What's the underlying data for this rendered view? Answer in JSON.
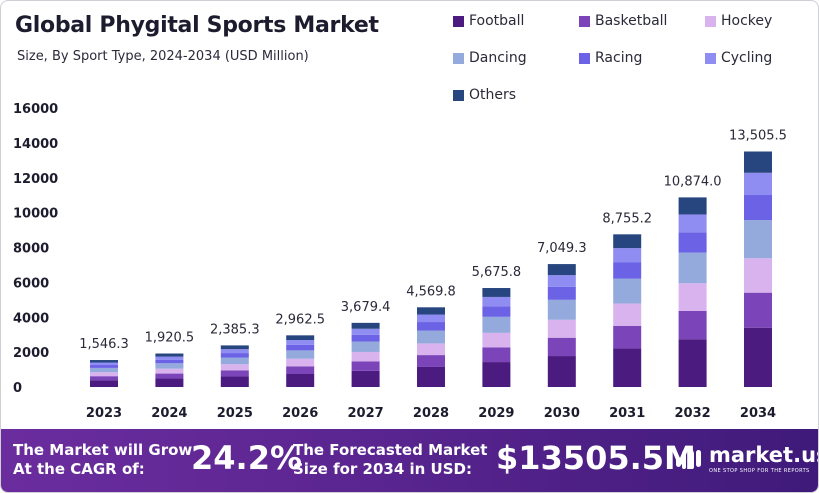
{
  "header": {
    "title": "Global Phygital Sports Market",
    "subtitle": "Size, By Sport Type, 2024-2034 (USD Million)"
  },
  "chart_data": {
    "type": "bar",
    "stacked": true,
    "categories": [
      "2023",
      "2024",
      "2025",
      "2026",
      "2027",
      "2028",
      "2029",
      "2030",
      "2031",
      "2032",
      "2034"
    ],
    "totals": [
      "1,546.3",
      "1,920.5",
      "2,385.3",
      "2,962.5",
      "3,679.4",
      "4,569.8",
      "5,675.8",
      "7,049.3",
      "8,755.2",
      "10,874.0",
      "13,505.5"
    ],
    "total_values": [
      1546.3,
      1920.5,
      2385.3,
      2962.5,
      3679.4,
      4569.8,
      5675.8,
      7049.3,
      8755.2,
      10874.0,
      13505.5
    ],
    "series": [
      {
        "name": "Football",
        "color": "#4b1b7f",
        "values": [
          390,
          485,
          600,
          745,
          925,
          1150,
          1430,
          1775,
          2205,
          2740,
          3400
        ]
      },
      {
        "name": "Basketball",
        "color": "#7b44b8",
        "values": [
          230,
          285,
          355,
          440,
          545,
          680,
          845,
          1050,
          1305,
          1620,
          2010
        ]
      },
      {
        "name": "Hockey",
        "color": "#d9b3ee",
        "values": [
          225,
          280,
          350,
          435,
          540,
          670,
          830,
          1030,
          1280,
          1590,
          1975
        ]
      },
      {
        "name": "Dancing",
        "color": "#94aadc",
        "values": [
          250,
          310,
          385,
          480,
          595,
          740,
          920,
          1145,
          1420,
          1765,
          2190
        ]
      },
      {
        "name": "Racing",
        "color": "#6c62e6",
        "values": [
          165,
          205,
          255,
          315,
          390,
          485,
          605,
          750,
          930,
          1155,
          1435
        ]
      },
      {
        "name": "Cycling",
        "color": "#8f8cf2",
        "values": [
          145,
          180,
          225,
          280,
          345,
          430,
          535,
          665,
          825,
          1025,
          1275
        ]
      },
      {
        "name": "Others",
        "color": "#27457f",
        "values": [
          141.3,
          175.5,
          215.3,
          267.5,
          339.4,
          414.8,
          510.8,
          634.3,
          790.2,
          979.0,
          1220.5
        ]
      }
    ],
    "yticks": [
      "0",
      "2000",
      "4000",
      "6000",
      "8000",
      "10000",
      "12000",
      "14000",
      "16000"
    ],
    "ylim": [
      0,
      16000
    ],
    "grid": false,
    "legend_position": "top-right"
  },
  "banner": {
    "cagr_text": "The Market will Grow At the CAGR of:",
    "cagr_value": "24.2%",
    "forecast_text": "The Forecasted Market Size for 2034 in USD:",
    "forecast_value": "$13505.5M",
    "logo_name": "market.us",
    "logo_tagline": "ONE STOP SHOP FOR THE REPORTS"
  }
}
